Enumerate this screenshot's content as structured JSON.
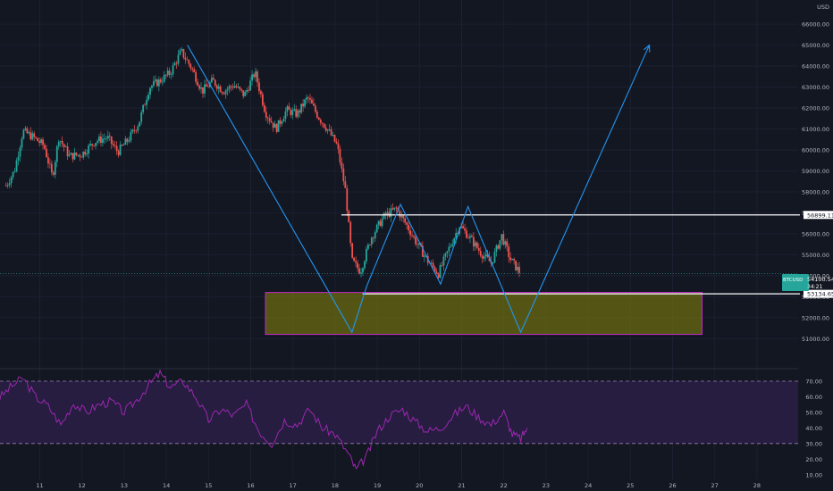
{
  "chart_data": [
    {
      "type": "candlestick",
      "symbol_tag": "BTCUSD",
      "currency": "USD",
      "last_price": "54100.54",
      "countdown": "34:21",
      "x_axis_labels": [
        "11",
        "12",
        "13",
        "14",
        "15",
        "16",
        "17",
        "18",
        "19",
        "20",
        "21",
        "22",
        "23",
        "24",
        "25",
        "26",
        "27",
        "28"
      ],
      "y_ticks": [
        "51000.00",
        "52000.00",
        "53000.00",
        "54000.00",
        "55000.00",
        "56000.00",
        "57000.00",
        "58000.00",
        "59000.00",
        "60000.00",
        "61000.00",
        "62000.00",
        "63000.00",
        "64000.00",
        "65000.00",
        "66000.00"
      ],
      "ylim": [
        50500,
        66600
      ],
      "price_path": [
        {
          "x": 10.2,
          "y": 58300
        },
        {
          "x": 10.4,
          "y": 59000
        },
        {
          "x": 10.6,
          "y": 60900
        },
        {
          "x": 10.85,
          "y": 60600
        },
        {
          "x": 11.1,
          "y": 60200
        },
        {
          "x": 11.3,
          "y": 58700
        },
        {
          "x": 11.45,
          "y": 60600
        },
        {
          "x": 11.7,
          "y": 59700
        },
        {
          "x": 12.0,
          "y": 59800
        },
        {
          "x": 12.3,
          "y": 60400
        },
        {
          "x": 12.6,
          "y": 60600
        },
        {
          "x": 12.85,
          "y": 59900
        },
        {
          "x": 13.1,
          "y": 60500
        },
        {
          "x": 13.35,
          "y": 61300
        },
        {
          "x": 13.6,
          "y": 63000
        },
        {
          "x": 13.85,
          "y": 63300
        },
        {
          "x": 14.1,
          "y": 63700
        },
        {
          "x": 14.35,
          "y": 64700
        },
        {
          "x": 14.6,
          "y": 63900
        },
        {
          "x": 14.85,
          "y": 62800
        },
        {
          "x": 15.1,
          "y": 63300
        },
        {
          "x": 15.35,
          "y": 62800
        },
        {
          "x": 15.6,
          "y": 63100
        },
        {
          "x": 15.85,
          "y": 62600
        },
        {
          "x": 16.1,
          "y": 63700
        },
        {
          "x": 16.35,
          "y": 61800
        },
        {
          "x": 16.6,
          "y": 61000
        },
        {
          "x": 16.85,
          "y": 61900
        },
        {
          "x": 17.1,
          "y": 61700
        },
        {
          "x": 17.35,
          "y": 62500
        },
        {
          "x": 17.6,
          "y": 61600
        },
        {
          "x": 17.85,
          "y": 60900
        },
        {
          "x": 18.05,
          "y": 60200
        },
        {
          "x": 18.25,
          "y": 58000
        },
        {
          "x": 18.4,
          "y": 54700
        },
        {
          "x": 18.6,
          "y": 54200
        },
        {
          "x": 18.85,
          "y": 55800
        },
        {
          "x": 19.15,
          "y": 56800
        },
        {
          "x": 19.45,
          "y": 57200
        },
        {
          "x": 19.7,
          "y": 56400
        },
        {
          "x": 19.95,
          "y": 55500
        },
        {
          "x": 20.2,
          "y": 54700
        },
        {
          "x": 20.45,
          "y": 54100
        },
        {
          "x": 20.7,
          "y": 55300
        },
        {
          "x": 20.95,
          "y": 56400
        },
        {
          "x": 21.2,
          "y": 55800
        },
        {
          "x": 21.45,
          "y": 55100
        },
        {
          "x": 21.7,
          "y": 54600
        },
        {
          "x": 21.95,
          "y": 55900
        },
        {
          "x": 22.15,
          "y": 54800
        },
        {
          "x": 22.4,
          "y": 54100
        }
      ],
      "pattern_path": [
        {
          "x": 14.5,
          "y": 65000
        },
        {
          "x": 18.4,
          "y": 51300
        },
        {
          "x": 18.75,
          "y": 53500
        },
        {
          "x": 19.55,
          "y": 57400
        },
        {
          "x": 20.5,
          "y": 53600
        },
        {
          "x": 21.15,
          "y": 57300
        },
        {
          "x": 22.4,
          "y": 51300
        },
        {
          "x": 25.45,
          "y": 65000
        }
      ],
      "horizontal_lines": [
        {
          "label": "56899.11",
          "price": 56899.11,
          "x_start": 18.15
        },
        {
          "label": "53134.65",
          "price": 53134.65,
          "x_start": 18.65
        }
      ],
      "demand_zone": {
        "x_from": 16.35,
        "x_to": 26.7,
        "y_from": 51200,
        "y_to": 53200
      },
      "colors": {
        "background": "#131722",
        "up": "#26a69a",
        "down": "#ef5350",
        "pattern": "#2196f3",
        "level_line": "#ffffff",
        "zone_fill": "#6b6b10",
        "zone_border": "#c02bc8",
        "rsi_line": "#9c27b0",
        "rsi_band": "#2a1f45",
        "axis_text": "#b2b5be",
        "price_tag": "#26a69a"
      }
    },
    {
      "type": "line",
      "indicator": "RSI",
      "y_ticks": [
        "10.00",
        "20.00",
        "30.00",
        "40.00",
        "50.00",
        "60.00",
        "70.00"
      ],
      "ylim": [
        7,
        78
      ],
      "upper_band": 70,
      "lower_band": 30,
      "series": [
        {
          "values": [
            {
              "x": 10.0,
              "y": 58
            },
            {
              "x": 10.3,
              "y": 66
            },
            {
              "x": 10.6,
              "y": 72
            },
            {
              "x": 10.9,
              "y": 60
            },
            {
              "x": 11.2,
              "y": 54
            },
            {
              "x": 11.5,
              "y": 42
            },
            {
              "x": 11.8,
              "y": 56
            },
            {
              "x": 12.1,
              "y": 50
            },
            {
              "x": 12.4,
              "y": 55
            },
            {
              "x": 12.7,
              "y": 57
            },
            {
              "x": 13.0,
              "y": 50
            },
            {
              "x": 13.3,
              "y": 58
            },
            {
              "x": 13.6,
              "y": 68
            },
            {
              "x": 13.85,
              "y": 75
            },
            {
              "x": 14.1,
              "y": 66
            },
            {
              "x": 14.4,
              "y": 70
            },
            {
              "x": 14.7,
              "y": 60
            },
            {
              "x": 15.0,
              "y": 45
            },
            {
              "x": 15.3,
              "y": 52
            },
            {
              "x": 15.6,
              "y": 48
            },
            {
              "x": 15.9,
              "y": 55
            },
            {
              "x": 16.2,
              "y": 38
            },
            {
              "x": 16.5,
              "y": 30
            },
            {
              "x": 16.8,
              "y": 45
            },
            {
              "x": 17.1,
              "y": 42
            },
            {
              "x": 17.4,
              "y": 52
            },
            {
              "x": 17.7,
              "y": 40
            },
            {
              "x": 18.0,
              "y": 36
            },
            {
              "x": 18.3,
              "y": 24
            },
            {
              "x": 18.5,
              "y": 13
            },
            {
              "x": 18.75,
              "y": 22
            },
            {
              "x": 19.0,
              "y": 38
            },
            {
              "x": 19.3,
              "y": 48
            },
            {
              "x": 19.6,
              "y": 52
            },
            {
              "x": 19.9,
              "y": 44
            },
            {
              "x": 20.2,
              "y": 38
            },
            {
              "x": 20.5,
              "y": 40
            },
            {
              "x": 20.8,
              "y": 48
            },
            {
              "x": 21.1,
              "y": 54
            },
            {
              "x": 21.4,
              "y": 47
            },
            {
              "x": 21.7,
              "y": 42
            },
            {
              "x": 22.0,
              "y": 50
            },
            {
              "x": 22.2,
              "y": 36
            },
            {
              "x": 22.4,
              "y": 33
            },
            {
              "x": 22.55,
              "y": 40
            }
          ]
        }
      ]
    }
  ]
}
